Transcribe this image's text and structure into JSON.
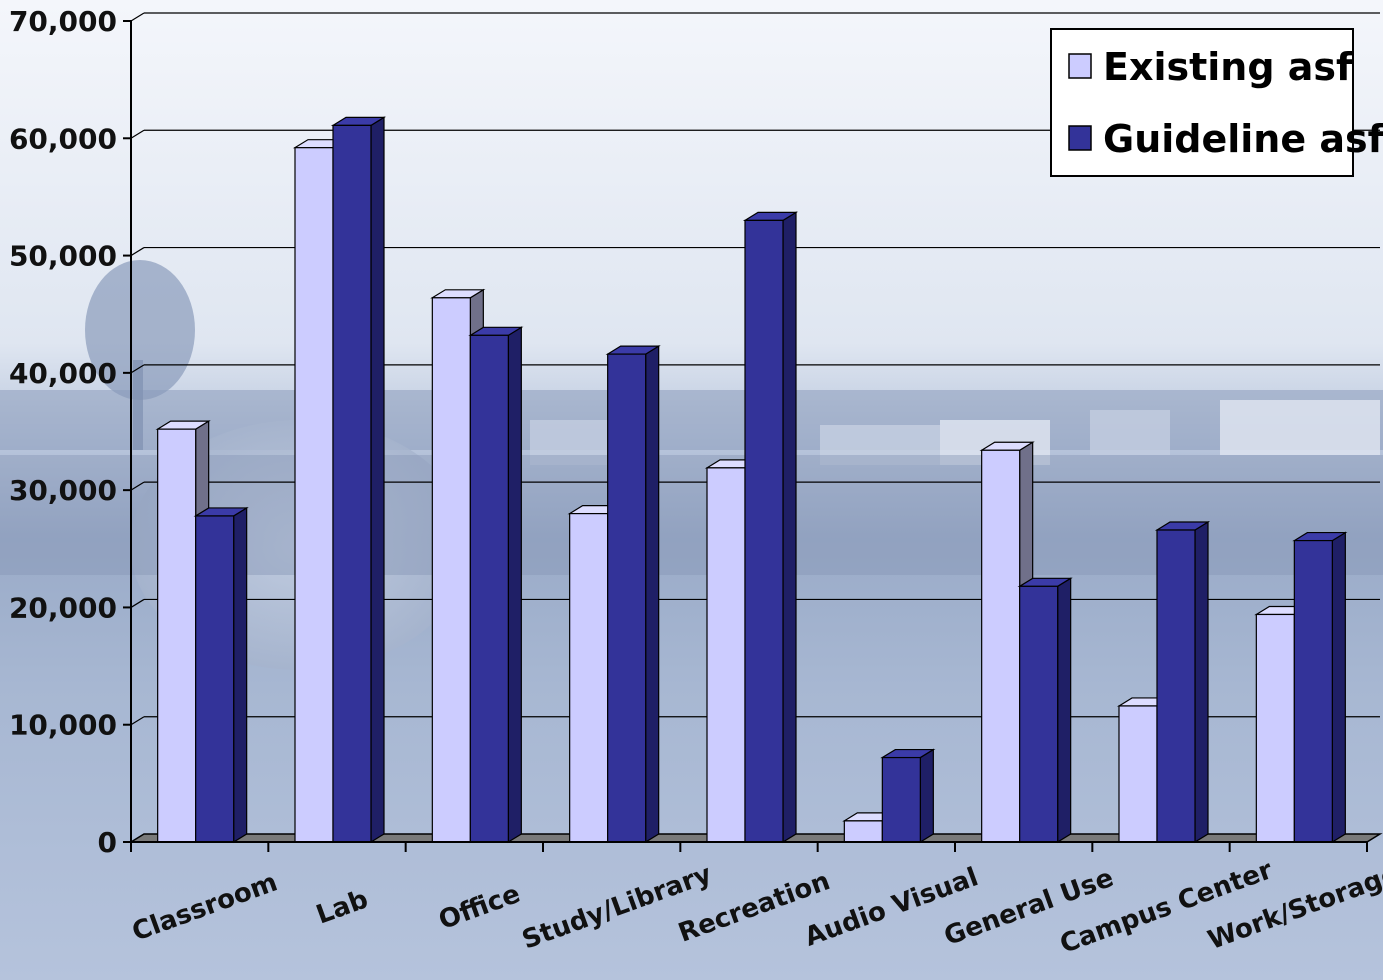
{
  "chart_data": {
    "type": "bar",
    "categories": [
      "Classroom",
      "Lab",
      "Office",
      "Study/Library",
      "Recreation",
      "Audio Visual",
      "General Use",
      "Campus Center",
      "Work/Storage"
    ],
    "series": [
      {
        "name": "Existing asf",
        "values": [
          35200,
          59200,
          46400,
          28000,
          31900,
          1800,
          33400,
          11600,
          19400
        ],
        "color": "#ccccff"
      },
      {
        "name": "Guideline asf",
        "values": [
          27800,
          61100,
          43200,
          41600,
          53000,
          7200,
          21800,
          26600,
          25700
        ],
        "color": "#333399"
      }
    ],
    "yticks": [
      "0",
      "10,000",
      "20,000",
      "30,000",
      "40,000",
      "50,000",
      "60,000",
      "70,000"
    ],
    "ylim": [
      0,
      70000
    ],
    "grid": true,
    "legend_position": "top-right",
    "style": "3d-clustered-column"
  }
}
